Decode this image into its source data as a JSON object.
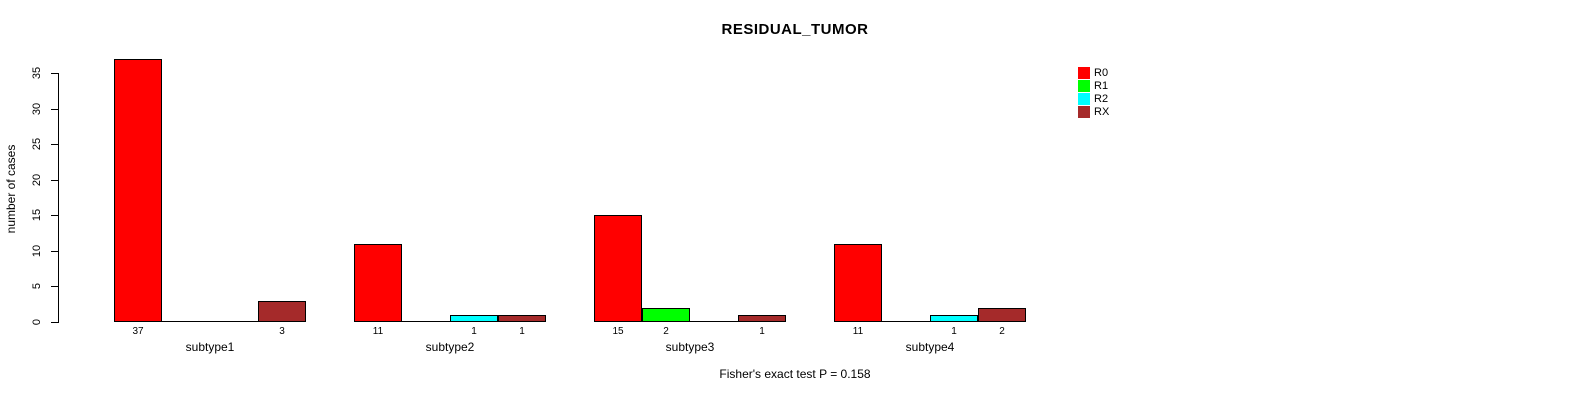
{
  "title": "RESIDUAL_TUMOR",
  "ylabel": "number of cases",
  "footnote": "Fisher's exact test P = 0.158",
  "chart_data": {
    "type": "bar",
    "title": "RESIDUAL_TUMOR",
    "xlabel": "",
    "ylabel": "number of cases",
    "categories": [
      "subtype1",
      "subtype2",
      "subtype3",
      "subtype4"
    ],
    "series": [
      {
        "name": "R0",
        "color": "#FF0000",
        "values": [
          37,
          11,
          15,
          11
        ]
      },
      {
        "name": "R1",
        "color": "#00FF00",
        "values": [
          0,
          0,
          2,
          0
        ]
      },
      {
        "name": "R2",
        "color": "#00FFFF",
        "values": [
          0,
          1,
          0,
          1
        ]
      },
      {
        "name": "RX",
        "color": "#A52A2A",
        "values": [
          3,
          1,
          1,
          2
        ]
      }
    ],
    "ylim": [
      0,
      35
    ],
    "yticks": [
      0,
      5,
      10,
      15,
      20,
      25,
      30,
      35
    ],
    "grid": false,
    "legend_position": "top-right",
    "bar_value_labels": "value shown under each non-zero bar; zero bars drawn as flat baseline segments",
    "annotation": "Fisher's exact test P = 0.158",
    "background": "#FFFFFF",
    "axis_color": "#000000",
    "bar_border_color": "#000000"
  }
}
